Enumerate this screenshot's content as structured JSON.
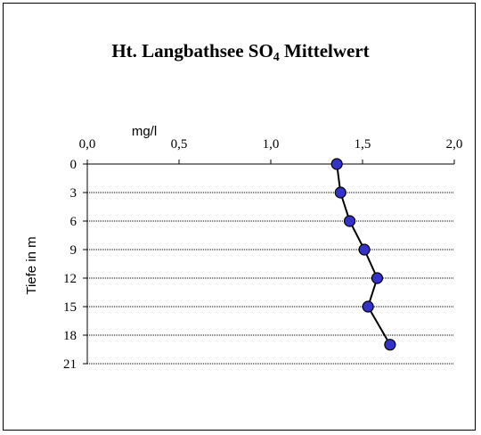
{
  "chart_data": {
    "type": "line",
    "title_main": "Ht. Langbathsee SO",
    "title_sub": "4",
    "title_tail": " Mittelwert",
    "xlabel": "mg/l",
    "ylabel": "Tiefe in m",
    "xlim": [
      0,
      2
    ],
    "x_ticks": [
      "0,0",
      "0,5",
      "1,0",
      "1,5",
      "2,0"
    ],
    "x_tick_values": [
      0,
      0.5,
      1.0,
      1.5,
      2.0
    ],
    "ylim": [
      0,
      21
    ],
    "y_ticks": [
      "0",
      "3",
      "6",
      "9",
      "12",
      "15",
      "18",
      "21"
    ],
    "y_tick_values": [
      0,
      3,
      6,
      9,
      12,
      15,
      18,
      21
    ],
    "x_axis_position": "top",
    "y_axis_inverted": true,
    "gridlines": "horizontal dotted",
    "series": [
      {
        "points": [
          {
            "depth": 0,
            "value": 1.36
          },
          {
            "depth": 3,
            "value": 1.38
          },
          {
            "depth": 6,
            "value": 1.43
          },
          {
            "depth": 9,
            "value": 1.51
          },
          {
            "depth": 12,
            "value": 1.58
          },
          {
            "depth": 15,
            "value": 1.53
          },
          {
            "depth": 19,
            "value": 1.65
          }
        ],
        "marker_color": "#3333cc",
        "line_color": "#000000"
      }
    ]
  }
}
